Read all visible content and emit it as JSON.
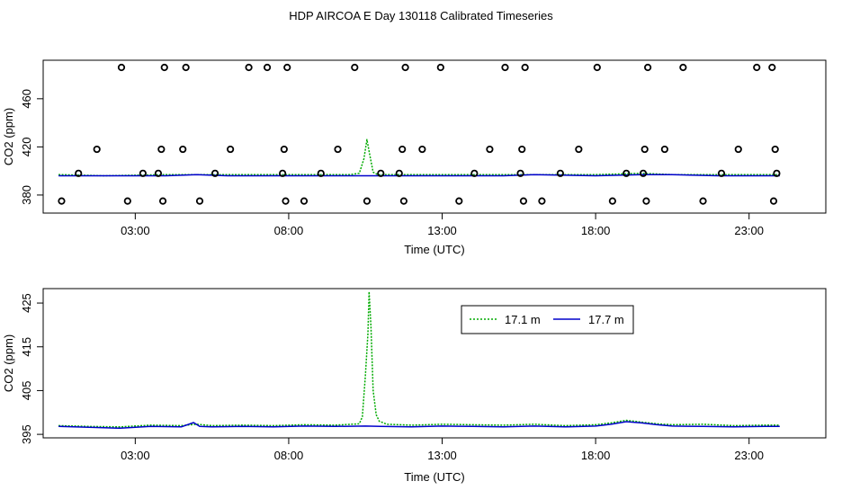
{
  "title": "HDP AIRCOA E  Day 130118  Calibrated Timeseries",
  "chart_data": [
    {
      "type": "scatter+line",
      "xlabel": "Time (UTC)",
      "ylabel": "CO2 (ppm)",
      "xlim": [
        0.0,
        25.5
      ],
      "ylim": [
        365,
        492
      ],
      "xticks": [
        3,
        8,
        13,
        18,
        23
      ],
      "xtick_labels": [
        "03:00",
        "08:00",
        "13:00",
        "18:00",
        "23:00"
      ],
      "yticks": [
        380,
        420,
        460
      ],
      "ytick_labels": [
        "380",
        "420",
        "460"
      ],
      "grid": false,
      "legend": "none",
      "series": [
        {
          "color": "#00aa00",
          "style": "dotted-line",
          "x": [
            0.5,
            2.0,
            4.0,
            6.0,
            8.0,
            10.0,
            10.3,
            10.45,
            10.55,
            10.65,
            10.75,
            10.9,
            12.0,
            14.0,
            15.0,
            16.0,
            18.0,
            19.5,
            20.5,
            22.0,
            24.0
          ],
          "y": [
            397,
            396,
            397,
            397,
            397,
            397,
            398,
            410,
            426,
            412,
            399,
            397,
            397,
            397,
            397,
            397,
            397,
            398,
            397,
            397,
            397
          ]
        },
        {
          "color": "#0000cc",
          "style": "solid-line",
          "x": [
            0.5,
            2.0,
            4.0,
            5.0,
            6.0,
            8.0,
            10.0,
            12.0,
            14.0,
            15.0,
            16.0,
            18.0,
            19.5,
            20.5,
            22.0,
            24.0
          ],
          "y": [
            396,
            396,
            396,
            397,
            396,
            396,
            396,
            396,
            396,
            396,
            397,
            396,
            397,
            397,
            396,
            396
          ]
        },
        {
          "color": "#000000",
          "style": "open-circle",
          "x": [
            0.6,
            1.15,
            1.75,
            2.55,
            2.75,
            3.25,
            3.75,
            3.85,
            3.9,
            3.95,
            4.55,
            4.65,
            5.1,
            5.6,
            6.1,
            6.7,
            7.3,
            7.8,
            7.85,
            7.9,
            7.95,
            8.5,
            9.05,
            9.6,
            10.15,
            10.55,
            11.0,
            11.6,
            11.7,
            11.75,
            11.8,
            12.35,
            12.95,
            13.55,
            14.05,
            14.55,
            15.05,
            15.55,
            15.6,
            15.65,
            15.7,
            16.25,
            16.85,
            17.45,
            18.05,
            18.55,
            19.0,
            19.55,
            19.6,
            19.65,
            19.7,
            20.25,
            20.85,
            21.5,
            22.1,
            22.65,
            23.25,
            23.75,
            23.8,
            23.85,
            23.9
          ],
          "y": [
            375,
            398,
            418,
            486,
            375,
            398,
            398,
            418,
            375,
            486,
            418,
            486,
            375,
            398,
            418,
            486,
            486,
            398,
            418,
            375,
            486,
            375,
            398,
            418,
            486,
            375,
            398,
            398,
            418,
            375,
            486,
            418,
            486,
            375,
            398,
            418,
            486,
            398,
            418,
            375,
            486,
            375,
            398,
            418,
            486,
            375,
            398,
            398,
            418,
            375,
            486,
            418,
            486,
            375,
            398,
            418,
            486,
            486,
            375,
            418,
            398
          ]
        }
      ]
    },
    {
      "type": "line",
      "xlabel": "Time (UTC)",
      "ylabel": "CO2 (ppm)",
      "xlim": [
        0.0,
        25.5
      ],
      "ylim": [
        394.2,
        428.3
      ],
      "xticks": [
        3,
        8,
        13,
        18,
        23
      ],
      "xtick_labels": [
        "03:00",
        "08:00",
        "13:00",
        "18:00",
        "23:00"
      ],
      "yticks": [
        395,
        405,
        415,
        425
      ],
      "ytick_labels": [
        "395",
        "405",
        "415",
        "425"
      ],
      "grid": false,
      "legend": "top-center",
      "series": [
        {
          "name": "17.1 m",
          "color": "#00aa00",
          "style": "dotted-line",
          "x": [
            0.5,
            1.5,
            2.5,
            3.5,
            4.5,
            5.0,
            5.5,
            6.5,
            7.5,
            8.5,
            9.5,
            10.3,
            10.4,
            10.5,
            10.58,
            10.62,
            10.68,
            10.75,
            10.85,
            10.95,
            11.2,
            12.0,
            13.0,
            14.0,
            15.0,
            16.0,
            17.0,
            18.0,
            18.5,
            19.0,
            19.5,
            20.0,
            20.5,
            21.5,
            22.5,
            23.5,
            24.0
          ],
          "y": [
            397.0,
            396.8,
            396.7,
            397.1,
            397.0,
            397.3,
            397.0,
            397.1,
            397.0,
            397.2,
            397.1,
            397.4,
            399.0,
            408.5,
            418.0,
            427.6,
            419.5,
            405.0,
            399.5,
            398.0,
            397.3,
            397.1,
            397.3,
            397.2,
            397.1,
            397.3,
            397.0,
            397.2,
            397.6,
            398.2,
            397.8,
            397.4,
            397.2,
            397.3,
            397.0,
            397.1,
            397.1
          ]
        },
        {
          "name": "17.7 m",
          "color": "#0000cc",
          "style": "solid-line",
          "x": [
            0.5,
            1.5,
            2.5,
            3.5,
            4.5,
            4.9,
            5.1,
            5.5,
            6.5,
            7.5,
            8.5,
            9.5,
            10.5,
            11.0,
            12.0,
            13.0,
            14.0,
            15.0,
            16.0,
            17.0,
            18.0,
            18.5,
            19.0,
            19.5,
            20.0,
            20.5,
            21.5,
            22.5,
            23.5,
            24.0
          ],
          "y": [
            396.8,
            396.6,
            396.4,
            396.8,
            396.7,
            397.7,
            396.8,
            396.7,
            396.8,
            396.7,
            396.9,
            396.8,
            396.9,
            396.8,
            396.7,
            396.9,
            396.8,
            396.7,
            396.9,
            396.7,
            396.9,
            397.3,
            397.9,
            397.6,
            397.2,
            396.9,
            396.8,
            396.7,
            396.8,
            396.8
          ]
        }
      ]
    }
  ]
}
